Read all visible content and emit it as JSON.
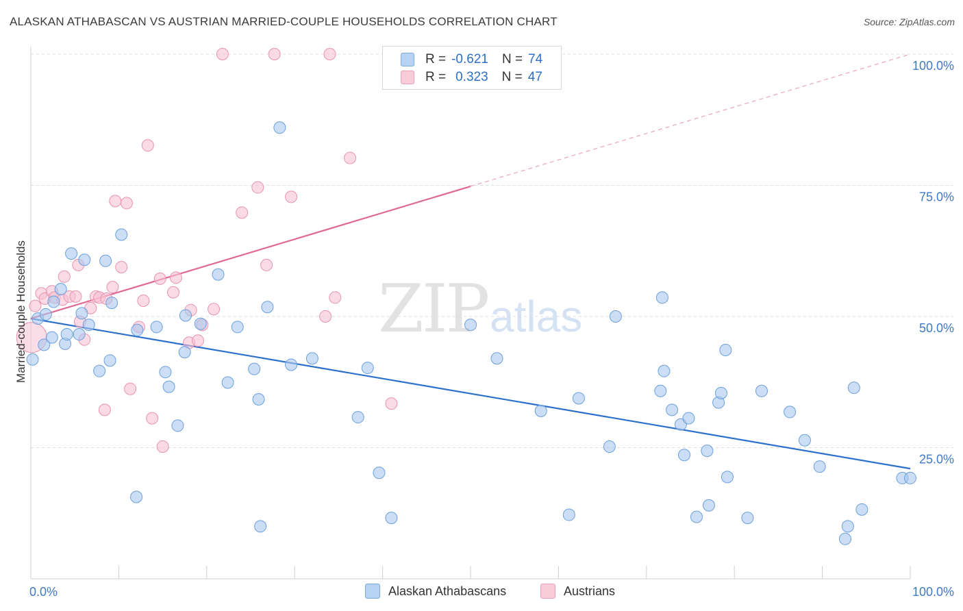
{
  "title": "ALASKAN ATHABASCAN VS AUSTRIAN MARRIED-COUPLE HOUSEHOLDS CORRELATION CHART",
  "source": "Source: ZipAtlas.com",
  "watermark": {
    "zip": "ZIP",
    "atlas": "atlas"
  },
  "legend": {
    "row1": {
      "r_label": "R =",
      "r_value": "-0.621",
      "n_label": "N =",
      "n_value": "74"
    },
    "row2": {
      "r_label": "R =",
      "r_value": "0.323",
      "n_label": "N =",
      "n_value": "47"
    }
  },
  "bottom_legend": {
    "series1": "Alaskan Athabascans",
    "series2": "Austrians"
  },
  "colors": {
    "blue_fill": "#a9c8ee",
    "blue_stroke": "#6a9fdc",
    "blue_line": "#2b6fcc",
    "pink_fill": "#f6c1d2",
    "pink_stroke": "#e892ae",
    "pink_line": "#e0688f",
    "grid": "#dcdcdc",
    "tick_label": "#3d78c9"
  },
  "chart_data": {
    "type": "scatter",
    "title": "ALASKAN ATHABASCAN VS AUSTRIAN MARRIED-COUPLE HOUSEHOLDS CORRELATION CHART",
    "xlabel": "",
    "ylabel": "Married-couple Households",
    "xlim": [
      0,
      100
    ],
    "ylim": [
      0,
      100
    ],
    "x_tick_labels": [
      "0.0%",
      "100.0%"
    ],
    "y_tick_labels": [
      "25.0%",
      "50.0%",
      "75.0%",
      "100.0%"
    ],
    "y_ticks": [
      25,
      50,
      75,
      100
    ],
    "grid": true,
    "series": [
      {
        "name": "Alaskan Athabascans",
        "r": -0.621,
        "n": 74,
        "trend": {
          "x": [
            0,
            100
          ],
          "y": [
            49.6,
            21.0
          ],
          "dashed_from": null
        },
        "points": [
          [
            0.2,
            41.8
          ],
          [
            0.8,
            49.6
          ],
          [
            1.5,
            44.6
          ],
          [
            1.7,
            50.4
          ],
          [
            2.4,
            46.0
          ],
          [
            2.6,
            52.8
          ],
          [
            3.4,
            55.2
          ],
          [
            3.9,
            44.8
          ],
          [
            4.1,
            46.6
          ],
          [
            4.6,
            62.0
          ],
          [
            5.5,
            46.6
          ],
          [
            5.8,
            50.6
          ],
          [
            6.1,
            60.8
          ],
          [
            6.6,
            48.4
          ],
          [
            7.8,
            39.6
          ],
          [
            8.5,
            60.6
          ],
          [
            9.0,
            41.6
          ],
          [
            9.2,
            52.6
          ],
          [
            10.3,
            65.6
          ],
          [
            12.0,
            15.6
          ],
          [
            12.1,
            47.4
          ],
          [
            14.3,
            48.0
          ],
          [
            15.3,
            39.4
          ],
          [
            15.7,
            36.6
          ],
          [
            16.7,
            29.2
          ],
          [
            17.5,
            43.2
          ],
          [
            17.6,
            50.2
          ],
          [
            19.3,
            48.6
          ],
          [
            21.3,
            58.0
          ],
          [
            22.4,
            37.4
          ],
          [
            23.5,
            48.0
          ],
          [
            25.4,
            40.0
          ],
          [
            25.9,
            34.2
          ],
          [
            26.1,
            10.0
          ],
          [
            26.9,
            51.8
          ],
          [
            28.3,
            86.0
          ],
          [
            29.6,
            40.8
          ],
          [
            32.0,
            42.0
          ],
          [
            37.2,
            30.8
          ],
          [
            38.3,
            40.2
          ],
          [
            39.6,
            20.2
          ],
          [
            41.0,
            11.6
          ],
          [
            50.0,
            48.4
          ],
          [
            53.0,
            42.0
          ],
          [
            58.0,
            32.0
          ],
          [
            61.2,
            12.2
          ],
          [
            62.3,
            34.4
          ],
          [
            65.8,
            25.2
          ],
          [
            66.5,
            50.0
          ],
          [
            71.6,
            35.8
          ],
          [
            72.0,
            39.6
          ],
          [
            71.8,
            53.6
          ],
          [
            72.9,
            32.2
          ],
          [
            73.9,
            29.4
          ],
          [
            74.3,
            23.6
          ],
          [
            74.8,
            30.6
          ],
          [
            75.7,
            11.8
          ],
          [
            76.9,
            24.4
          ],
          [
            77.1,
            14.0
          ],
          [
            78.2,
            33.6
          ],
          [
            78.5,
            35.4
          ],
          [
            79.0,
            43.6
          ],
          [
            79.2,
            19.4
          ],
          [
            81.5,
            11.6
          ],
          [
            83.1,
            35.8
          ],
          [
            86.3,
            31.8
          ],
          [
            88.0,
            26.4
          ],
          [
            89.7,
            21.4
          ],
          [
            92.6,
            7.6
          ],
          [
            92.9,
            10.0
          ],
          [
            93.6,
            36.4
          ],
          [
            94.5,
            13.2
          ],
          [
            99.1,
            19.2
          ],
          [
            100.0,
            19.2
          ]
        ]
      },
      {
        "name": "Austrians",
        "r": 0.323,
        "n": 47,
        "trend": {
          "x": [
            0,
            100
          ],
          "y": [
            49.6,
            100.0
          ],
          "solid_until_x": 50.0
        },
        "points": [
          [
            0.1,
            46.0
          ],
          [
            0.5,
            52.0
          ],
          [
            1.2,
            54.4
          ],
          [
            1.6,
            53.4
          ],
          [
            2.4,
            54.8
          ],
          [
            2.7,
            53.6
          ],
          [
            3.6,
            53.2
          ],
          [
            3.8,
            57.6
          ],
          [
            4.4,
            53.8
          ],
          [
            5.1,
            53.8
          ],
          [
            5.4,
            59.8
          ],
          [
            5.6,
            49.0
          ],
          [
            6.1,
            45.6
          ],
          [
            6.8,
            51.6
          ],
          [
            7.4,
            53.8
          ],
          [
            7.8,
            53.6
          ],
          [
            8.4,
            32.2
          ],
          [
            8.6,
            53.4
          ],
          [
            9.3,
            55.6
          ],
          [
            9.6,
            72.0
          ],
          [
            10.3,
            59.4
          ],
          [
            10.9,
            71.6
          ],
          [
            11.3,
            36.2
          ],
          [
            12.3,
            48.0
          ],
          [
            12.8,
            53.0
          ],
          [
            13.3,
            82.6
          ],
          [
            13.8,
            30.6
          ],
          [
            14.7,
            57.2
          ],
          [
            15.0,
            25.2
          ],
          [
            16.2,
            54.6
          ],
          [
            16.5,
            57.4
          ],
          [
            18.0,
            45.0
          ],
          [
            18.2,
            51.2
          ],
          [
            19.0,
            45.4
          ],
          [
            19.5,
            48.4
          ],
          [
            20.8,
            51.4
          ],
          [
            21.8,
            100.0
          ],
          [
            24.0,
            69.8
          ],
          [
            25.8,
            74.6
          ],
          [
            26.8,
            59.8
          ],
          [
            27.7,
            100.0
          ],
          [
            29.6,
            72.8
          ],
          [
            33.5,
            50.0
          ],
          [
            34.0,
            100.0
          ],
          [
            34.6,
            53.6
          ],
          [
            36.3,
            80.2
          ],
          [
            41.0,
            33.4
          ]
        ]
      }
    ]
  }
}
